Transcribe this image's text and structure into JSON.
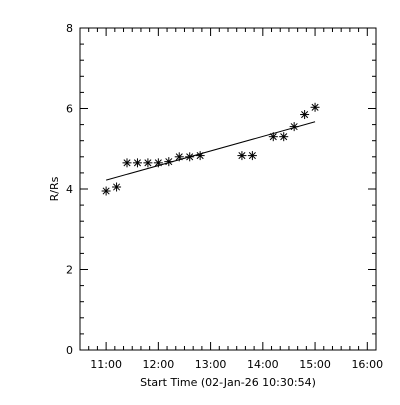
{
  "chart_data": {
    "type": "scatter",
    "title": "",
    "xlabel": "Start Time (02-Jan-26 10:30:54)",
    "ylabel": "R/Rs",
    "xlim": [
      "10:30",
      "16:10"
    ],
    "ylim": [
      0,
      8
    ],
    "x_tick_labels": [
      "11:00",
      "12:00",
      "13:00",
      "14:00",
      "15:00",
      "16:00"
    ],
    "y_tick_labels": [
      "0",
      "2",
      "4",
      "6",
      "8"
    ],
    "grid": false,
    "marker": "asterisk",
    "series": [
      {
        "x": [
          "11:00",
          "11:12",
          "11:24",
          "11:36",
          "11:48",
          "12:00",
          "12:12",
          "12:24",
          "12:36",
          "12:48",
          "13:36",
          "13:48",
          "14:12",
          "14:24",
          "14:36",
          "14:48",
          "15:00"
        ],
        "y": [
          3.95,
          4.05,
          4.65,
          4.65,
          4.65,
          4.65,
          4.68,
          4.8,
          4.8,
          4.83,
          4.83,
          4.83,
          5.3,
          5.3,
          5.55,
          5.85,
          6.03
        ]
      }
    ],
    "fit_line": {
      "x": [
        "11:00",
        "15:00"
      ],
      "y": [
        4.22,
        5.67
      ]
    }
  }
}
